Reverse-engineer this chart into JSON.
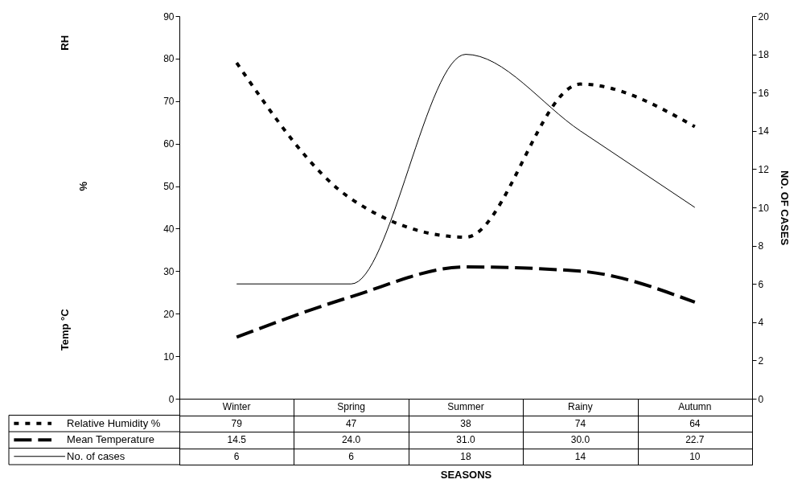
{
  "chart_data": {
    "type": "line",
    "categories": [
      "Winter",
      "Spring",
      "Summer",
      "Rainy",
      "Autumn"
    ],
    "series": [
      {
        "name": "Relative Humidity %",
        "color": "#000000",
        "values": [
          79,
          47,
          38,
          74,
          64
        ],
        "value_labels": [
          "79",
          "47",
          "38",
          "74",
          "64"
        ],
        "line_style": "dotted"
      },
      {
        "name": "Mean Temperature",
        "color": "#000000",
        "values": [
          14.5,
          24.0,
          31.0,
          30.0,
          22.7
        ],
        "value_labels": [
          "14.5",
          "24.0",
          "31.0",
          "30.0",
          "22.7"
        ],
        "line_style": "dashed"
      },
      {
        "name": "No. of cases",
        "color": "#000000",
        "values": [
          6,
          6,
          18,
          14,
          10
        ],
        "value_labels": [
          "6",
          "6",
          "18",
          "14",
          "10"
        ],
        "axis": "y2",
        "line_style": "solid"
      }
    ],
    "ylim": [
      0,
      90
    ],
    "yticks": [
      0,
      10,
      20,
      30,
      40,
      50,
      60,
      70,
      80,
      90
    ],
    "y2lim": [
      0,
      20
    ],
    "y2ticks": [
      0,
      2,
      4,
      6,
      8,
      10,
      12,
      14,
      16,
      18,
      20
    ],
    "y2label": "NO. OF CASES",
    "annotations": [
      "RH",
      "%",
      "Temp °C",
      "SEASONS"
    ],
    "legend": "bottom left",
    "marker": "none",
    "grid": false
  }
}
